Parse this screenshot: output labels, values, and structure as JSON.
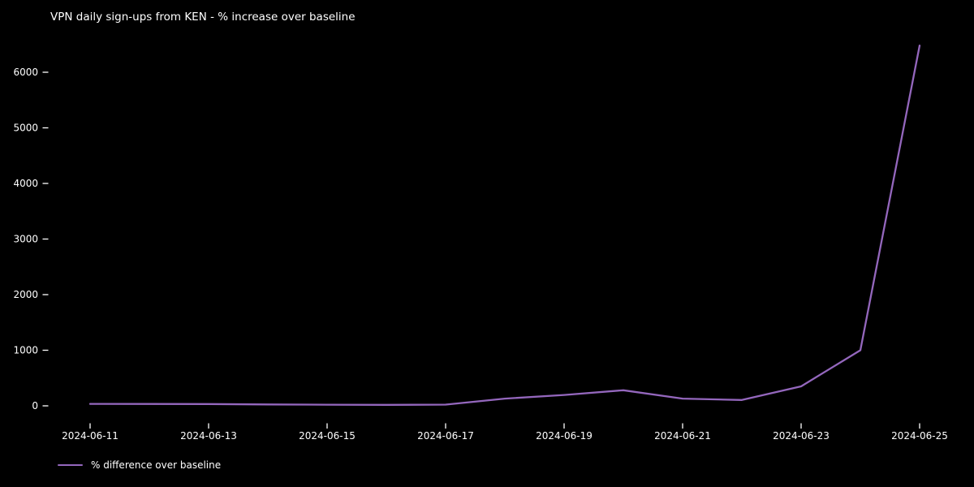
{
  "title": "VPN daily sign-ups from KEN - % increase over baseline",
  "colors": {
    "background": "#000000",
    "text": "#ffffff",
    "line": "#9467bd",
    "tick": "#ffffff"
  },
  "legend": {
    "label": "% difference over baseline",
    "swatch_color": "#9467bd",
    "position": "below-axis-lower-left"
  },
  "chart_data": {
    "type": "line",
    "title": "VPN daily sign-ups from KEN - % increase over baseline",
    "xlabel": "",
    "ylabel": "",
    "x": [
      "2024-06-11",
      "2024-06-12",
      "2024-06-13",
      "2024-06-14",
      "2024-06-15",
      "2024-06-16",
      "2024-06-17",
      "2024-06-18",
      "2024-06-19",
      "2024-06-20",
      "2024-06-21",
      "2024-06-22",
      "2024-06-23",
      "2024-06-24",
      "2024-06-25"
    ],
    "series": [
      {
        "name": "% difference over baseline",
        "values": [
          35,
          34,
          32,
          25,
          20,
          18,
          22,
          130,
          195,
          280,
          130,
          105,
          350,
          1000,
          6480
        ]
      }
    ],
    "yticks": [
      0,
      1000,
      2000,
      3000,
      4000,
      5000,
      6000
    ],
    "xtick_labels": [
      "2024-06-11",
      "2024-06-13",
      "2024-06-15",
      "2024-06-17",
      "2024-06-19",
      "2024-06-21",
      "2024-06-23",
      "2024-06-25"
    ],
    "ylim": [
      -310,
      6690
    ],
    "grid": false,
    "legend_position": "lower left, below plot"
  }
}
